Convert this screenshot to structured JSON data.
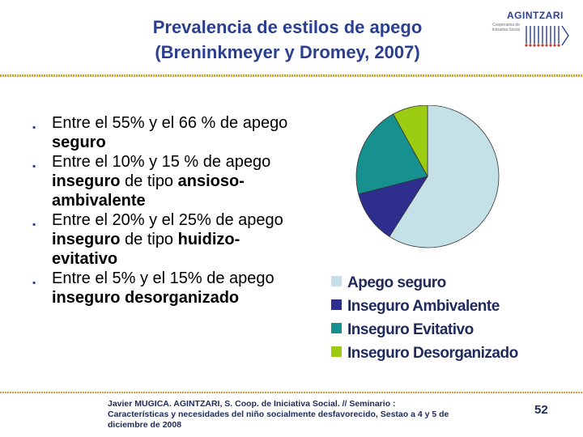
{
  "header": {
    "title_line1": "Prevalencia de estilos de apego",
    "title_line2": "(Breninkmeyer y Dromey, 2007)",
    "logo_name": "AGINTZARI",
    "logo_sub": "Cooperativa de Iniciativa Social"
  },
  "bullets": [
    {
      "pre": "Entre el 55% y el 66 % de apego ",
      "bold": "seguro",
      "post": ""
    },
    {
      "pre": "Entre el 10% y 15 % de apego ",
      "bold": "inseguro",
      "post": " de tipo ",
      "bold2": "ansioso-ambivalente"
    },
    {
      "pre": "Entre el 20% y el 25% de apego ",
      "bold": "inseguro",
      "post": " de tipo ",
      "bold2": "huidizo-evitativo"
    },
    {
      "pre": "Entre el 5% y el 15% de apego ",
      "bold": "inseguro",
      "post": " ",
      "bold2": "desorganizado"
    }
  ],
  "chart_data": {
    "type": "pie",
    "title": "",
    "labels": [
      "Apego seguro",
      "Inseguro Ambivalente",
      "Inseguro Evitativo",
      "Inseguro Desorganizado"
    ],
    "values": [
      59,
      12,
      21,
      8
    ],
    "colors": [
      "#c4e1e8",
      "#2e2e8e",
      "#17918f",
      "#9ccc12"
    ],
    "legend_position": "bottom"
  },
  "footer": {
    "line1": "Javier MUGICA. AGINTZARI, S. Coop. de Iniciativa Social. // Seminario :",
    "line2": "Características y necesidades del niño socialmente desfavorecido, Sestao a 4 y 5 de",
    "line3": "diciembre de 2008",
    "page": "52"
  }
}
